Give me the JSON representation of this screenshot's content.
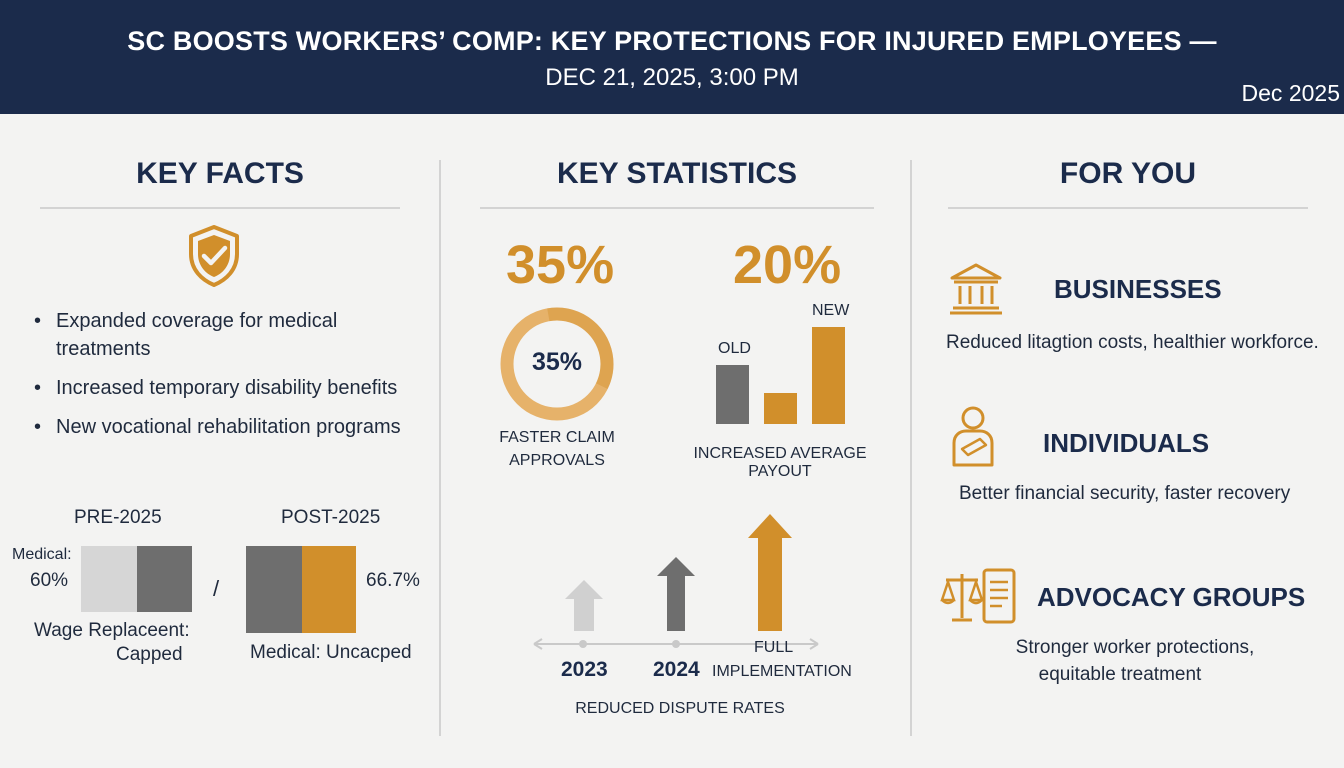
{
  "header": {
    "title_line1": "SC BOOSTS WORKERS’ COMP: KEY PROTECTIONS FOR INJURED EMPLOYEES —",
    "title_line2": "DEC 21, 2025, 3:00 PM",
    "date_badge": "Dec 2025"
  },
  "key_facts": {
    "title": "KEY FACTS",
    "icon": "shield-check-icon",
    "bullets": [
      "Expanded coverage for medical",
      "treatments",
      "Increased temporary disability benefits",
      "New vocational rehabilitation programs"
    ],
    "comparison": {
      "pre_label": "PRE-2025",
      "post_label": "POST-2025",
      "pre_medical_label": "Medical:",
      "pre_medical_value": "60%",
      "separator": "/",
      "post_value": "66.7%",
      "pre_wage_line1": "Wage Replaceent:",
      "pre_wage_line2": "Capped",
      "post_medical": "Medical: Uncacped"
    }
  },
  "key_statistics": {
    "title": "KEY STATISTICS",
    "stat1": {
      "value": "35%",
      "ring_value": "35%",
      "label_line1": "FASTER CLAIM",
      "label_line2": "APPROVALS"
    },
    "stat2": {
      "value": "20%",
      "old_label": "OLD",
      "new_label": "NEW",
      "label": "INCREASED AVERAGE PAYOUT"
    },
    "timeline": {
      "label_2023": "2023",
      "label_2024": "2024",
      "label_full_line1": "FULL",
      "label_full_line2": "IMPLEMENTATION",
      "caption": "REDUCED DISPUTE RATES"
    }
  },
  "for_you": {
    "title": "FOR YOU",
    "groups": [
      {
        "icon": "bank-icon",
        "title": "BUSINESSES",
        "text_line1": "Reduced litagtion costs, healthier workforce.",
        "text_line2": ""
      },
      {
        "icon": "injured-person-icon",
        "title": "INDIVIDUALS",
        "text_line1": "Better financial security, faster recovery",
        "text_line2": ""
      },
      {
        "icon": "scales-document-icon",
        "title": "ADVOCACY GROUPS",
        "text_line1": "Stronger worker protections,",
        "text_line2": "equitable treatment"
      }
    ]
  },
  "colors": {
    "navy": "#1b2b4b",
    "gold": "#d18f2b",
    "gray": "#6e6e6e",
    "lightgray": "#d6d6d6"
  }
}
